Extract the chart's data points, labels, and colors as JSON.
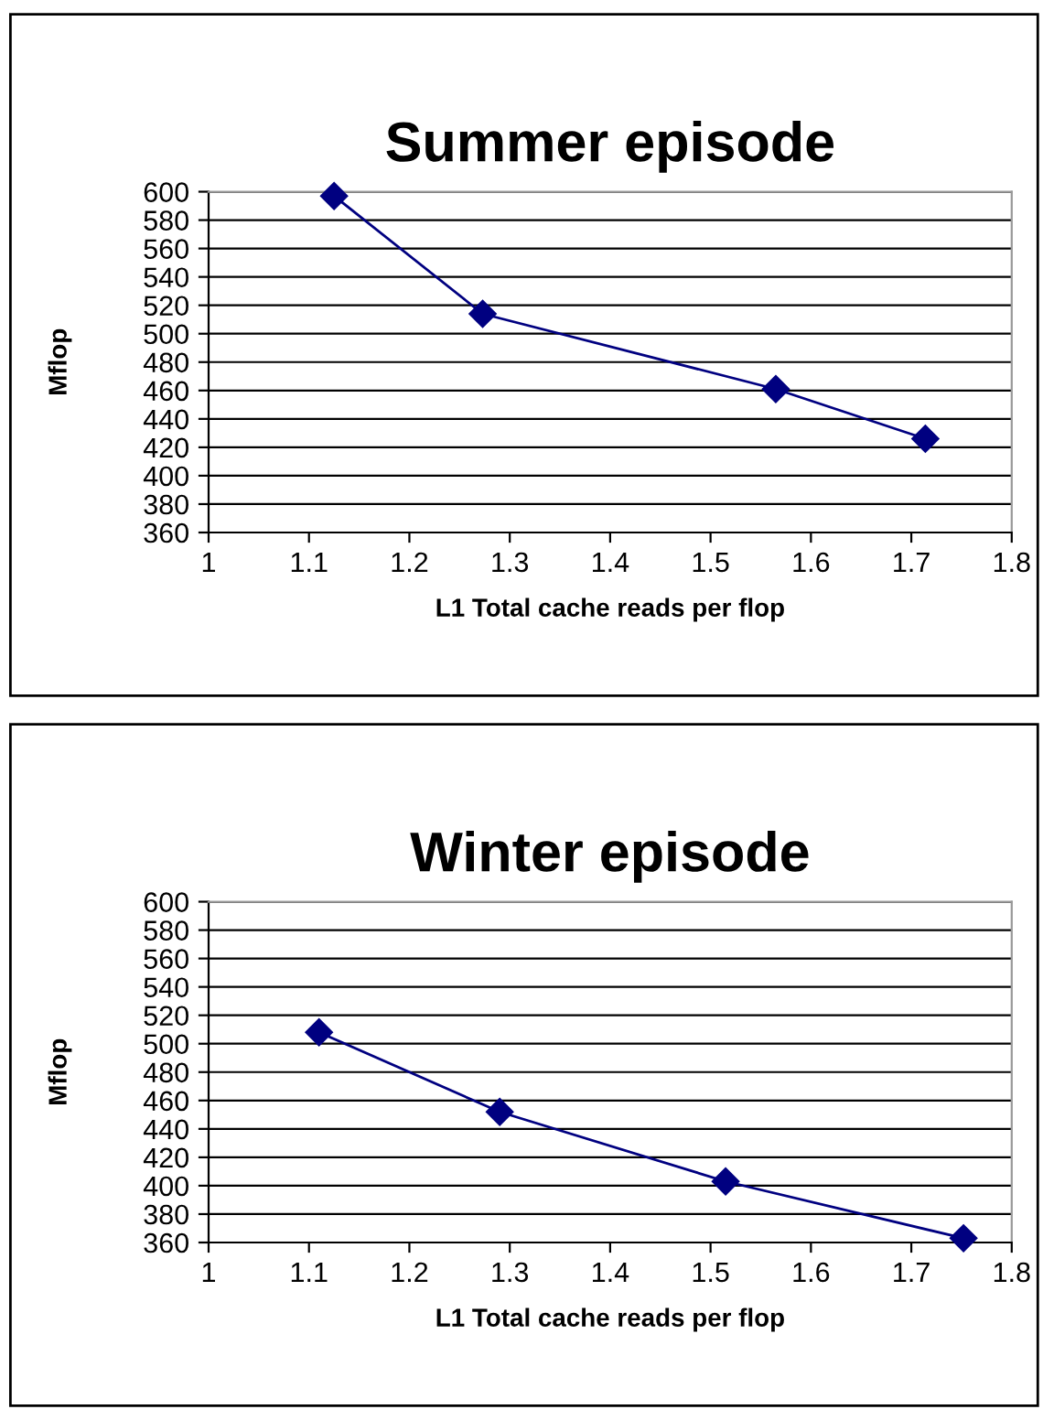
{
  "chart_data": [
    {
      "type": "line",
      "title": "Summer episode",
      "xlabel": "L1 Total cache reads per flop",
      "ylabel": "Mflop",
      "x": [
        1.125,
        1.273,
        1.565,
        1.714
      ],
      "series": [
        {
          "color": "#000080",
          "values": [
            597,
            514,
            461,
            426
          ]
        }
      ],
      "xlim": [
        1,
        1.8
      ],
      "xticks": [
        1,
        1.1,
        1.2,
        1.3,
        1.4,
        1.5,
        1.6,
        1.7,
        1.8
      ],
      "ylim": [
        360,
        600
      ],
      "yticks": [
        360,
        380,
        400,
        420,
        440,
        460,
        480,
        500,
        520,
        540,
        560,
        580,
        600
      ],
      "grid": "y",
      "marker": "diamond",
      "line_style": "solid",
      "legend": false
    },
    {
      "type": "line",
      "title": "Winter episode",
      "xlabel": "L1 Total cache reads per flop",
      "ylabel": "Mflop",
      "x": [
        1.11,
        1.29,
        1.515,
        1.752
      ],
      "series": [
        {
          "color": "#000080",
          "values": [
            508,
            452,
            403,
            363
          ]
        }
      ],
      "xlim": [
        1,
        1.8
      ],
      "xticks": [
        1,
        1.1,
        1.2,
        1.3,
        1.4,
        1.5,
        1.6,
        1.7,
        1.8
      ],
      "ylim": [
        360,
        600
      ],
      "yticks": [
        360,
        380,
        400,
        420,
        440,
        460,
        480,
        500,
        520,
        540,
        560,
        580,
        600
      ],
      "grid": "y",
      "marker": "diamond",
      "line_style": "solid",
      "legend": false
    }
  ]
}
